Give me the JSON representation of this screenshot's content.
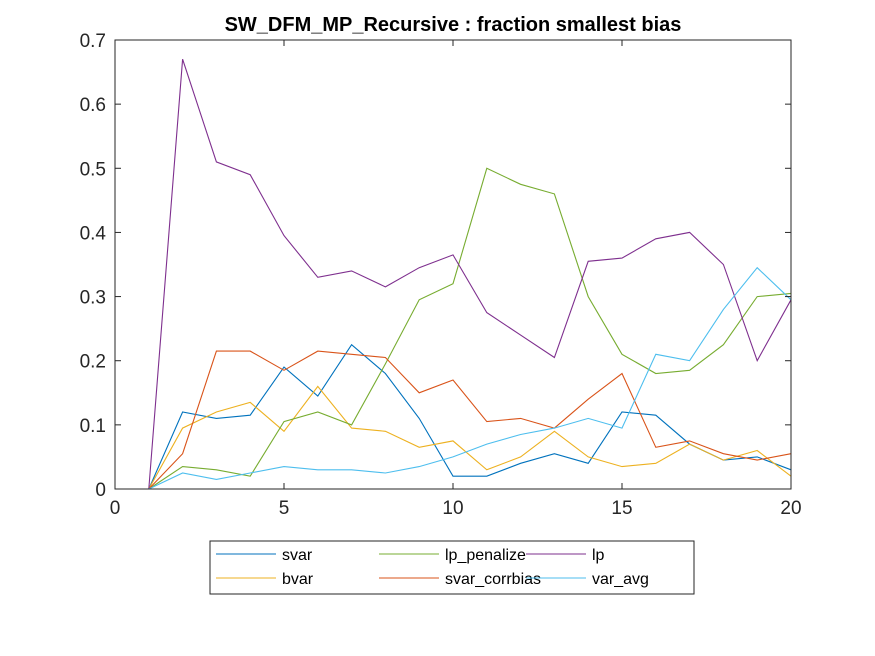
{
  "chart_data": {
    "type": "line",
    "title": "SW_DFM_MP_Recursive : fraction smallest bias",
    "xlabel": "",
    "ylabel": "",
    "xlim": [
      0,
      20
    ],
    "ylim": [
      0,
      0.7
    ],
    "xticks": [
      "0",
      "5",
      "10",
      "15",
      "20"
    ],
    "yticks": [
      "0",
      "0.1",
      "0.2",
      "0.3",
      "0.4",
      "0.5",
      "0.6",
      "0.7"
    ],
    "grid": false,
    "legend_position": "bottom-outside",
    "x": [
      1,
      2,
      3,
      4,
      5,
      6,
      7,
      8,
      9,
      10,
      11,
      12,
      13,
      14,
      15,
      16,
      17,
      18,
      19,
      20
    ],
    "series": [
      {
        "name": "svar",
        "color": "#0072BD",
        "values": [
          0,
          0.12,
          0.11,
          0.115,
          0.19,
          0.145,
          0.225,
          0.18,
          0.11,
          0.02,
          0.02,
          0.04,
          0.055,
          0.04,
          0.12,
          0.115,
          0.07,
          0.045,
          0.05,
          0.03
        ]
      },
      {
        "name": "bvar",
        "color": "#EDB120",
        "values": [
          0,
          0.095,
          0.12,
          0.135,
          0.09,
          0.16,
          0.095,
          0.09,
          0.065,
          0.075,
          0.03,
          0.05,
          0.09,
          0.05,
          0.035,
          0.04,
          0.07,
          0.045,
          0.06,
          0.02
        ]
      },
      {
        "name": "lp_penalize",
        "color": "#77AC30",
        "values": [
          0,
          0.035,
          0.03,
          0.02,
          0.105,
          0.12,
          0.1,
          0.195,
          0.295,
          0.32,
          0.5,
          0.475,
          0.46,
          0.3,
          0.21,
          0.18,
          0.185,
          0.225,
          0.3,
          0.305
        ]
      },
      {
        "name": "svar_corrbias",
        "color": "#D95319",
        "values": [
          0,
          0.055,
          0.215,
          0.215,
          0.185,
          0.215,
          0.21,
          0.205,
          0.15,
          0.17,
          0.105,
          0.11,
          0.095,
          0.14,
          0.18,
          0.065,
          0.075,
          0.055,
          0.045,
          0.055
        ]
      },
      {
        "name": "lp",
        "color": "#7E2F8E",
        "values": [
          0,
          0.67,
          0.51,
          0.49,
          0.395,
          0.33,
          0.34,
          0.315,
          0.345,
          0.365,
          0.275,
          0.24,
          0.205,
          0.355,
          0.36,
          0.39,
          0.4,
          0.35,
          0.2,
          0.295
        ]
      },
      {
        "name": "var_avg",
        "color": "#4DBEEE",
        "values": [
          0,
          0.025,
          0.015,
          0.025,
          0.035,
          0.03,
          0.03,
          0.025,
          0.035,
          0.05,
          0.07,
          0.085,
          0.095,
          0.11,
          0.095,
          0.21,
          0.2,
          0.28,
          0.345,
          0.295
        ]
      }
    ]
  }
}
